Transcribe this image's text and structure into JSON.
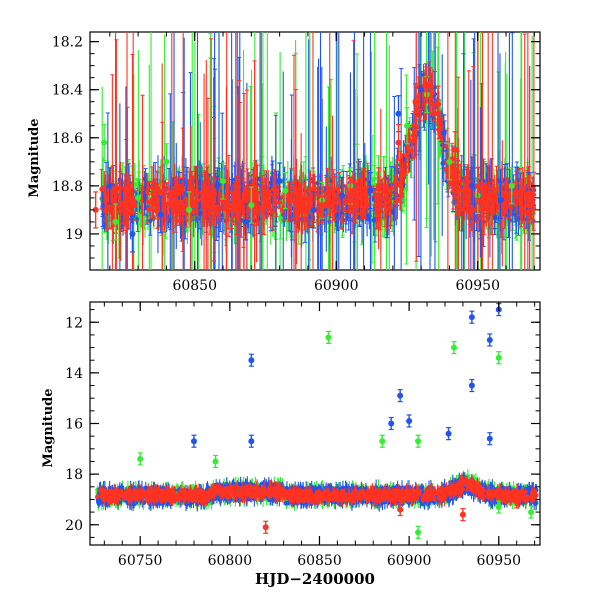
{
  "chart_data": [
    {
      "type": "scatter",
      "xlabel": "",
      "ylabel": "Magnitude",
      "xlim": [
        60813,
        60972
      ],
      "ylim": [
        19.15,
        18.16
      ],
      "y_inverted": true,
      "xticks": [
        60850,
        60900,
        60950
      ],
      "yticks": [
        18.2,
        18.4,
        18.6,
        18.8,
        19
      ],
      "ytick_labels": [
        "18.2",
        "18.4",
        "18.6",
        "18.8",
        "19"
      ],
      "xtick_labels": [
        "60850",
        "60900",
        "60950"
      ],
      "series": [
        {
          "name": "green",
          "color": "#33ee33",
          "points": [
            [
              60818,
              18.62
            ],
            [
              60822,
              18.95
            ],
            [
              60830,
              18.85
            ],
            [
              60840,
              18.7
            ],
            [
              60848,
              18.9
            ],
            [
              60860,
              18.78
            ],
            [
              60870,
              18.88
            ],
            [
              60882,
              18.82
            ],
            [
              60895,
              18.86
            ],
            [
              60905,
              18.8
            ],
            [
              60915,
              18.75
            ],
            [
              60925,
              18.55
            ],
            [
              60932,
              18.42
            ],
            [
              60940,
              18.7
            ],
            [
              60950,
              18.84
            ],
            [
              60962,
              18.8
            ]
          ]
        },
        {
          "name": "blue",
          "color": "#2255ee",
          "points": [
            [
              60820,
              18.8
            ],
            [
              60828,
              19.0
            ],
            [
              60838,
              18.92
            ],
            [
              60845,
              18.85
            ],
            [
              60858,
              18.8
            ],
            [
              60868,
              18.95
            ],
            [
              60880,
              18.78
            ],
            [
              60892,
              18.9
            ],
            [
              60902,
              18.84
            ],
            [
              60912,
              18.82
            ],
            [
              60922,
              18.5
            ],
            [
              60930,
              18.4
            ],
            [
              60938,
              18.58
            ],
            [
              60948,
              18.8
            ],
            [
              60958,
              18.86
            ],
            [
              60968,
              18.82
            ]
          ]
        },
        {
          "name": "red",
          "color": "#ff3322",
          "points": [
            [
              60815,
              18.9
            ],
            [
              60825,
              18.88
            ],
            [
              60835,
              18.86
            ],
            [
              60845,
              18.87
            ],
            [
              60855,
              18.84
            ],
            [
              60865,
              18.85
            ],
            [
              60875,
              18.86
            ],
            [
              60885,
              18.86
            ],
            [
              60895,
              18.88
            ],
            [
              60905,
              18.84
            ],
            [
              60915,
              18.8
            ],
            [
              60922,
              18.62
            ],
            [
              60928,
              18.45
            ],
            [
              60932,
              18.38
            ],
            [
              60936,
              18.46
            ],
            [
              60942,
              18.65
            ],
            [
              60950,
              18.8
            ],
            [
              60960,
              18.84
            ],
            [
              60968,
              18.83
            ]
          ]
        }
      ]
    },
    {
      "type": "scatter",
      "xlabel": "HJD−2400000",
      "ylabel": "Magnitude",
      "xlim": [
        60722,
        60973
      ],
      "ylim": [
        20.8,
        11.2
      ],
      "y_inverted": true,
      "xticks": [
        60750,
        60800,
        60850,
        60900,
        60950
      ],
      "yticks": [
        12,
        14,
        16,
        18,
        20
      ],
      "ytick_labels": [
        "12",
        "14",
        "16",
        "18",
        "20"
      ],
      "xtick_labels": [
        "60750",
        "60800",
        "60850",
        "60900",
        "60950"
      ],
      "series": [
        {
          "name": "blue",
          "color": "#2255ee",
          "points": [
            [
              60780,
              16.7
            ],
            [
              60812,
              13.5
            ],
            [
              60812,
              16.7
            ],
            [
              60890,
              16.0
            ],
            [
              60895,
              14.9
            ],
            [
              60900,
              15.9
            ],
            [
              60922,
              16.4
            ],
            [
              60935,
              11.8
            ],
            [
              60935,
              14.5
            ],
            [
              60945,
              12.7
            ],
            [
              60945,
              16.6
            ],
            [
              60950,
              11.5
            ]
          ]
        },
        {
          "name": "green",
          "color": "#33ee33",
          "points": [
            [
              60750,
              17.4
            ],
            [
              60792,
              17.5
            ],
            [
              60855,
              12.6
            ],
            [
              60885,
              16.7
            ],
            [
              60905,
              16.7
            ],
            [
              60905,
              20.3
            ],
            [
              60925,
              13.0
            ],
            [
              60950,
              13.4
            ],
            [
              60950,
              19.3
            ],
            [
              60968,
              19.5
            ]
          ]
        },
        {
          "name": "red",
          "color": "#ff3322",
          "points": [
            [
              60820,
              20.1
            ],
            [
              60895,
              19.4
            ],
            [
              60930,
              19.6
            ],
            [
              60960,
              19.1
            ]
          ]
        }
      ]
    }
  ]
}
